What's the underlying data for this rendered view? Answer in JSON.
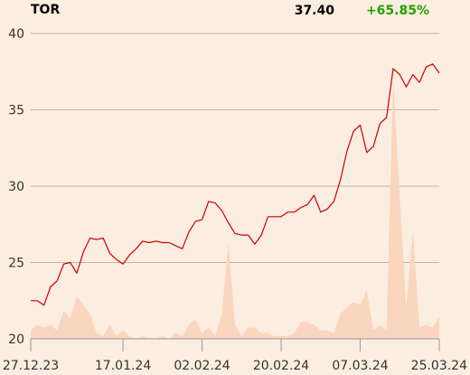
{
  "header": {
    "ticker": "TOR",
    "price": "37.40",
    "change": "+65.85%"
  },
  "colors": {
    "background": "#fcede1",
    "line": "#cc0000",
    "volume": "#f9d6bd",
    "change_positive": "#22a000",
    "grid": "#bfb3a8"
  },
  "chart_data": {
    "type": "line",
    "title": "",
    "xlabel": "",
    "ylabel": "",
    "ylim": [
      20,
      40
    ],
    "yticks": [
      20,
      25,
      30,
      35,
      40
    ],
    "grid": true,
    "xtick_labels": [
      "27.12.23",
      "17.01.24",
      "02.02.24",
      "20.02.24",
      "07.03.24",
      "25.03.24"
    ],
    "xtick_positions": [
      0,
      14,
      26,
      38,
      50,
      62
    ],
    "series": [
      {
        "kind": "price",
        "values": [
          22.5,
          22.5,
          22.2,
          23.4,
          23.8,
          24.9,
          25.0,
          24.3,
          25.7,
          26.6,
          26.5,
          26.6,
          25.6,
          25.2,
          24.9,
          25.5,
          25.9,
          26.4,
          26.3,
          26.4,
          26.3,
          26.3,
          26.1,
          25.9,
          27.0,
          27.7,
          27.8,
          29.0,
          28.9,
          28.4,
          27.6,
          26.9,
          26.8,
          26.8,
          26.2,
          26.8,
          28.0,
          28.0,
          28.0,
          28.3,
          28.3,
          28.6,
          28.8,
          29.4,
          28.3,
          28.5,
          29.0,
          30.4,
          32.3,
          33.6,
          34.0,
          32.2,
          32.6,
          34.1,
          34.5,
          37.7,
          37.3,
          36.5,
          37.3,
          36.8,
          37.8,
          38.0,
          37.4
        ]
      },
      {
        "kind": "volume",
        "values": [
          0.03,
          0.05,
          0.04,
          0.05,
          0.03,
          0.1,
          0.07,
          0.15,
          0.12,
          0.09,
          0.02,
          0.01,
          0.05,
          0.01,
          0.03,
          0.01,
          0.0,
          0.01,
          0.0,
          0.0,
          0.01,
          0.0,
          0.02,
          0.01,
          0.05,
          0.07,
          0.02,
          0.04,
          0.01,
          0.09,
          0.34,
          0.05,
          0.01,
          0.04,
          0.04,
          0.02,
          0.02,
          0.01,
          0.01,
          0.01,
          0.02,
          0.06,
          0.06,
          0.05,
          0.03,
          0.03,
          0.02,
          0.09,
          0.11,
          0.13,
          0.12,
          0.17,
          0.03,
          0.05,
          0.03,
          0.92,
          0.5,
          0.11,
          0.38,
          0.04,
          0.05,
          0.04,
          0.08
        ]
      }
    ]
  }
}
